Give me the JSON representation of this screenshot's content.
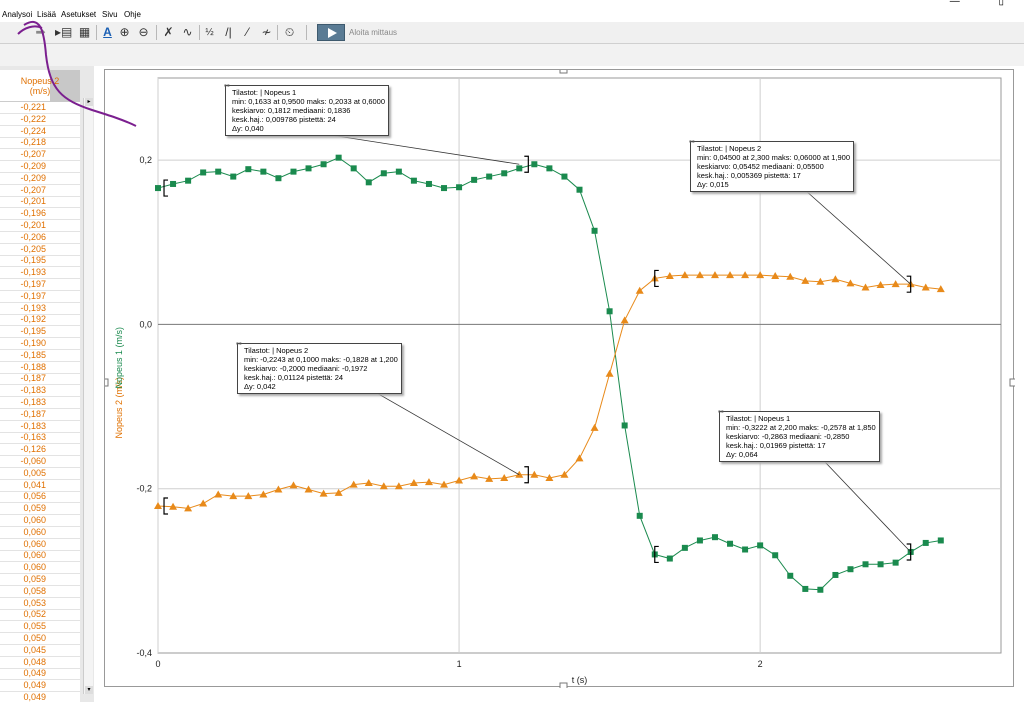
{
  "menu": {
    "items": [
      "Analysoi",
      "Lisää",
      "Asetukset",
      "Sivu",
      "Ohje"
    ]
  },
  "window": {
    "restore_glyph": "—",
    "close_glyph": "▯"
  },
  "toolbar": {
    "collect_label": "Aloita mittaus"
  },
  "table": {
    "header_line1": "Nopeus 2",
    "header_line2": "(m/s)",
    "values": [
      "-0,221",
      "-0,222",
      "-0,224",
      "-0,218",
      "-0,207",
      "-0,209",
      "-0,209",
      "-0,207",
      "-0,201",
      "-0,196",
      "-0,201",
      "-0,206",
      "-0,205",
      "-0,195",
      "-0,193",
      "-0,197",
      "-0,197",
      "-0,193",
      "-0,192",
      "-0,195",
      "-0,190",
      "-0,185",
      "-0,188",
      "-0,187",
      "-0,183",
      "-0,183",
      "-0,187",
      "-0,183",
      "-0,163",
      "-0,126",
      "-0,060",
      "0,005",
      "0,041",
      "0,056",
      "0,059",
      "0,060",
      "0,060",
      "0,060",
      "0,060",
      "0,060",
      "0,059",
      "0,058",
      "0,053",
      "0,052",
      "0,055",
      "0,050",
      "0,045",
      "0,048",
      "0,049",
      "0,049",
      "0,049"
    ]
  },
  "colors": {
    "series1": "#1a8a4e",
    "series2": "#e88a1a"
  },
  "chart_data": {
    "type": "scatter",
    "xlabel": "t (s)",
    "ylabel1": "Nopeus 1 (m/s)",
    "ylabel2": "Nopeus 2 (m/s)",
    "xlim": [
      0,
      2.8
    ],
    "ylim": [
      -0.4,
      0.3
    ],
    "x_ticks": [
      "0",
      "1",
      "2"
    ],
    "y_ticks": [
      "0,2",
      "0,0",
      "-0,2",
      "-0,4"
    ],
    "grid": true,
    "series": [
      {
        "name": "Nopeus 1",
        "marker": "square",
        "t": [
          0,
          0.05,
          0.1,
          0.15,
          0.2,
          0.25,
          0.3,
          0.35,
          0.4,
          0.45,
          0.5,
          0.55,
          0.6,
          0.65,
          0.7,
          0.75,
          0.8,
          0.85,
          0.9,
          0.95,
          1.0,
          1.05,
          1.1,
          1.15,
          1.2,
          1.25,
          1.3,
          1.35,
          1.4,
          1.45,
          1.5,
          1.55,
          1.6,
          1.65,
          1.7,
          1.75,
          1.8,
          1.85,
          1.9,
          1.95,
          2.0,
          2.05,
          2.1,
          2.15,
          2.2,
          2.25,
          2.3,
          2.35,
          2.4,
          2.45,
          2.5,
          2.55,
          2.6
        ],
        "v": [
          0.166,
          0.171,
          0.175,
          0.185,
          0.186,
          0.18,
          0.189,
          0.186,
          0.178,
          0.186,
          0.19,
          0.195,
          0.203,
          0.19,
          0.173,
          0.184,
          0.186,
          0.175,
          0.171,
          0.166,
          0.167,
          0.176,
          0.18,
          0.184,
          0.19,
          0.195,
          0.19,
          0.18,
          0.164,
          0.114,
          0.016,
          -0.123,
          -0.233,
          -0.28,
          -0.285,
          -0.272,
          -0.263,
          -0.259,
          -0.267,
          -0.274,
          -0.269,
          -0.281,
          -0.306,
          -0.322,
          -0.323,
          -0.305,
          -0.298,
          -0.292,
          -0.292,
          -0.29,
          -0.277,
          -0.266,
          -0.263
        ]
      },
      {
        "name": "Nopeus 2",
        "marker": "triangle",
        "t": [
          0,
          0.05,
          0.1,
          0.15,
          0.2,
          0.25,
          0.3,
          0.35,
          0.4,
          0.45,
          0.5,
          0.55,
          0.6,
          0.65,
          0.7,
          0.75,
          0.8,
          0.85,
          0.9,
          0.95,
          1.0,
          1.05,
          1.1,
          1.15,
          1.2,
          1.25,
          1.3,
          1.35,
          1.4,
          1.45,
          1.5,
          1.55,
          1.6,
          1.65,
          1.7,
          1.75,
          1.8,
          1.85,
          1.9,
          1.95,
          2.0,
          2.05,
          2.1,
          2.15,
          2.2,
          2.25,
          2.3,
          2.35,
          2.4,
          2.45,
          2.5,
          2.55,
          2.6
        ],
        "v": [
          -0.221,
          -0.222,
          -0.224,
          -0.218,
          -0.207,
          -0.209,
          -0.209,
          -0.207,
          -0.201,
          -0.196,
          -0.201,
          -0.206,
          -0.205,
          -0.195,
          -0.193,
          -0.197,
          -0.197,
          -0.193,
          -0.192,
          -0.195,
          -0.19,
          -0.185,
          -0.188,
          -0.187,
          -0.183,
          -0.183,
          -0.187,
          -0.183,
          -0.163,
          -0.126,
          -0.06,
          0.005,
          0.041,
          0.056,
          0.059,
          0.06,
          0.06,
          0.06,
          0.06,
          0.06,
          0.06,
          0.059,
          0.058,
          0.053,
          0.052,
          0.055,
          0.05,
          0.045,
          0.048,
          0.049,
          0.049,
          0.045,
          0.043
        ]
      }
    ],
    "callouts": [
      {
        "line1": "Tilastot:   | Nopeus 1",
        "line2": "min: 0,1633 at 0,9500 maks: 0,2033 at 0,6000",
        "line3": "keskiarvo: 0,1812 mediaani: 0,1836",
        "line4": "kesk.haj.: 0,009786 pistettä: 24",
        "line5": "Δy: 0,040"
      },
      {
        "line1": "Tilastot:   | Nopeus 2",
        "line2": "min: 0,04500 at 2,300 maks: 0,06000 at 1,900",
        "line3": "keskiarvo: 0,05452 mediaani: 0,05500",
        "line4": "kesk.haj.: 0,005369 pistettä: 17",
        "line5": "Δy: 0,015"
      },
      {
        "line1": "Tilastot:   | Nopeus 2",
        "line2": "min: -0,2243 at 0,1000 maks: -0,1828 at 1,200",
        "line3": "keskiarvo: -0,2000 mediaani: -0,1972",
        "line4": "kesk.haj.: 0,01124 pistettä: 24",
        "line5": "Δy: 0,042"
      },
      {
        "line1": "Tilastot:   | Nopeus 1",
        "line2": "min: -0,3222 at 2,200 maks: -0,2578 at 1,850",
        "line3": "keskiarvo: -0,2863 mediaani: -0,2850",
        "line4": "kesk.haj.: 0,01969 pistettä: 17",
        "line5": "Δy: 0,064"
      }
    ]
  }
}
